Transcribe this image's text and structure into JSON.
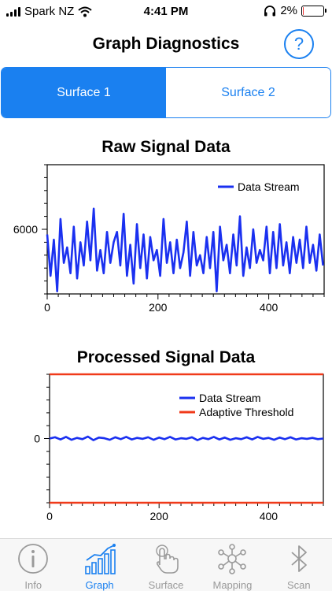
{
  "status_bar": {
    "carrier": "Spark NZ",
    "time": "4:41 PM",
    "battery_percent": "2%",
    "battery_level": 0.02,
    "icons": [
      "signal-icon",
      "wifi-icon",
      "headphones-icon",
      "battery-icon"
    ]
  },
  "header": {
    "title": "Graph Diagnostics",
    "help_label": "?"
  },
  "segments": [
    {
      "label": "Surface 1",
      "selected": true
    },
    {
      "label": "Surface 2",
      "selected": false
    }
  ],
  "chart_data": [
    {
      "type": "line",
      "title": "Raw Signal Data",
      "xlabel": "",
      "ylabel": "",
      "xlim": [
        0,
        500
      ],
      "ylim": [
        3500,
        8500
      ],
      "xticks": [
        0,
        200,
        400
      ],
      "yticks": [
        6000
      ],
      "grid": false,
      "legend": "top-right",
      "series": [
        {
          "name": "Data Stream",
          "color": "#1a30f0",
          "x": [
            0,
            6,
            12,
            18,
            24,
            30,
            36,
            42,
            48,
            54,
            60,
            66,
            72,
            78,
            84,
            90,
            96,
            102,
            108,
            114,
            120,
            126,
            132,
            138,
            144,
            150,
            156,
            162,
            168,
            174,
            180,
            186,
            192,
            198,
            204,
            210,
            216,
            222,
            228,
            234,
            240,
            246,
            252,
            258,
            264,
            270,
            276,
            282,
            288,
            294,
            300,
            306,
            312,
            318,
            324,
            330,
            336,
            342,
            348,
            354,
            360,
            366,
            372,
            378,
            384,
            390,
            396,
            402,
            408,
            414,
            420,
            426,
            432,
            438,
            444,
            450,
            456,
            462,
            468,
            474,
            480,
            486,
            492,
            498
          ],
          "values": [
            5800,
            4200,
            5600,
            3600,
            6400,
            4700,
            5300,
            4300,
            6100,
            4100,
            5500,
            4600,
            6300,
            4800,
            6800,
            4400,
            5200,
            4300,
            5900,
            4700,
            5500,
            5900,
            4600,
            6600,
            4200,
            5400,
            3900,
            6200,
            4500,
            5800,
            4100,
            5700,
            4800,
            5200,
            4200,
            6400,
            4700,
            5500,
            4300,
            5600,
            4500,
            5100,
            6300,
            4200,
            5900,
            4600,
            5000,
            4300,
            5700,
            4500,
            5900,
            3600,
            6100,
            4800,
            5400,
            4300,
            5800,
            4600,
            6500,
            4200,
            5300,
            4500,
            6000,
            4700,
            5200,
            4800,
            6100,
            4300,
            5900,
            4500,
            6200,
            4600,
            5500,
            4300,
            5700,
            4700,
            5600,
            4500,
            6100,
            4700,
            5400,
            4400,
            5800,
            4600
          ]
        }
      ]
    },
    {
      "type": "line",
      "title": "Processed Signal Data",
      "xlabel": "",
      "ylabel": "",
      "xlim": [
        0,
        500
      ],
      "ylim": [
        -1000,
        1000
      ],
      "xticks": [
        0,
        200,
        400
      ],
      "yticks": [
        0
      ],
      "grid": false,
      "legend": "top-right",
      "series": [
        {
          "name": "Data Stream",
          "color": "#1a30f0",
          "x": [
            0,
            10,
            20,
            30,
            40,
            50,
            60,
            70,
            80,
            90,
            100,
            110,
            120,
            130,
            140,
            150,
            160,
            170,
            180,
            190,
            200,
            210,
            220,
            230,
            240,
            250,
            260,
            270,
            280,
            290,
            300,
            310,
            320,
            330,
            340,
            350,
            360,
            370,
            380,
            390,
            400,
            410,
            420,
            430,
            440,
            450,
            460,
            470,
            480,
            490,
            500
          ],
          "values": [
            0,
            20,
            -15,
            25,
            -20,
            10,
            -10,
            30,
            -25,
            15,
            5,
            -20,
            20,
            -10,
            25,
            -15,
            10,
            -5,
            20,
            -20,
            15,
            -10,
            25,
            -15,
            5,
            -5,
            20,
            -25,
            10,
            -10,
            25,
            -15,
            15,
            -20,
            5,
            -10,
            20,
            -15,
            25,
            -5,
            10,
            -20,
            15,
            -10,
            20,
            -15,
            5,
            -5,
            10,
            -10,
            0
          ]
        },
        {
          "name": "Adaptive Threshold",
          "color": "#f03a1a",
          "x": [
            0,
            500
          ],
          "values": [
            1000,
            1000
          ]
        },
        {
          "name": "Adaptive Threshold (lower)",
          "color": "#f03a1a",
          "x": [
            0,
            500
          ],
          "values": [
            -1000,
            -1000
          ]
        }
      ]
    }
  ],
  "tab_bar": {
    "tabs": [
      {
        "label": "Info",
        "icon": "info-icon",
        "active": false
      },
      {
        "label": "Graph",
        "icon": "graph-icon",
        "active": true
      },
      {
        "label": "Surface",
        "icon": "touch-icon",
        "active": false
      },
      {
        "label": "Mapping",
        "icon": "mapping-icon",
        "active": false
      },
      {
        "label": "Scan",
        "icon": "bluetooth-icon",
        "active": false
      }
    ]
  }
}
